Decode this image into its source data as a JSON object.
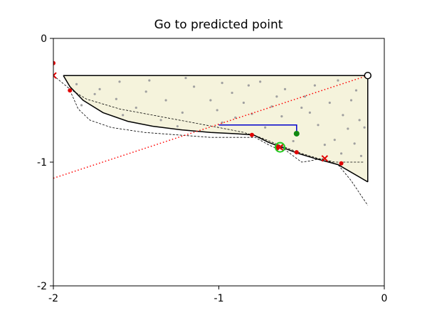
{
  "chart_data": {
    "type": "scatter",
    "title": "Go to predicted point",
    "xlabel": "",
    "ylabel": "",
    "xlim": [
      -2,
      0
    ],
    "ylim": [
      -2,
      0
    ],
    "grid": false,
    "x_ticks": [
      {
        "value": -2,
        "label": "-2"
      },
      {
        "value": -1,
        "label": "-1"
      },
      {
        "value": 0,
        "label": "0"
      }
    ],
    "y_ticks": [
      {
        "value": 0,
        "label": "0"
      },
      {
        "value": -1,
        "label": "-1"
      },
      {
        "value": -2,
        "label": "-2"
      }
    ],
    "colors": {
      "region_fill": "#f5f3dc",
      "scatter": "#a0a0a0",
      "boundary": "#000000",
      "markers": "#e00000",
      "step": "#0000cc",
      "predicted": "#118811",
      "target": "#22cc22",
      "dotted": "#ff0000"
    },
    "region": [
      [
        -1.94,
        -0.3
      ],
      [
        -0.1,
        -0.3
      ],
      [
        -0.1,
        -1.16
      ],
      [
        -0.28,
        -1.02
      ],
      [
        -0.42,
        -0.97
      ],
      [
        -0.52,
        -0.93
      ],
      [
        -0.62,
        -0.88
      ],
      [
        -0.7,
        -0.84
      ],
      [
        -0.79,
        -0.78
      ],
      [
        -0.9,
        -0.77
      ],
      [
        -1.05,
        -0.76
      ],
      [
        -1.22,
        -0.74
      ],
      [
        -1.4,
        -0.71
      ],
      [
        -1.55,
        -0.67
      ],
      [
        -1.7,
        -0.6
      ],
      [
        -1.82,
        -0.5
      ],
      [
        -1.9,
        -0.39
      ]
    ],
    "boundary_curve": [
      [
        -1.94,
        -0.3
      ],
      [
        -1.9,
        -0.39
      ],
      [
        -1.82,
        -0.5
      ],
      [
        -1.7,
        -0.6
      ],
      [
        -1.55,
        -0.67
      ],
      [
        -1.4,
        -0.71
      ],
      [
        -1.22,
        -0.74
      ],
      [
        -1.05,
        -0.76
      ],
      [
        -0.9,
        -0.77
      ],
      [
        -0.79,
        -0.78
      ],
      [
        -0.7,
        -0.84
      ],
      [
        -0.62,
        -0.88
      ],
      [
        -0.52,
        -0.93
      ],
      [
        -0.42,
        -0.97
      ],
      [
        -0.28,
        -1.02
      ],
      [
        -0.1,
        -1.16
      ]
    ],
    "dashed_curves": [
      [
        [
          -2.0,
          -0.3
        ],
        [
          -1.9,
          -0.41
        ],
        [
          -1.8,
          -0.49
        ],
        [
          -1.6,
          -0.57
        ],
        [
          -1.4,
          -0.62
        ],
        [
          -1.2,
          -0.67
        ],
        [
          -1.0,
          -0.72
        ],
        [
          -0.85,
          -0.76
        ],
        [
          -0.75,
          -0.8
        ],
        [
          -0.62,
          -0.87
        ],
        [
          -0.5,
          -0.93
        ],
        [
          -0.4,
          -0.97
        ],
        [
          -0.3,
          -1.0
        ],
        [
          -0.22,
          -1.0
        ],
        [
          -0.12,
          -1.0
        ]
      ],
      [
        [
          -1.9,
          -0.42
        ],
        [
          -1.85,
          -0.57
        ],
        [
          -1.78,
          -0.66
        ],
        [
          -1.65,
          -0.72
        ],
        [
          -1.45,
          -0.76
        ],
        [
          -1.25,
          -0.78
        ],
        [
          -1.05,
          -0.8
        ],
        [
          -0.9,
          -0.8
        ],
        [
          -0.78,
          -0.8
        ],
        [
          -0.7,
          -0.86
        ],
        [
          -0.65,
          -0.89
        ],
        [
          -0.6,
          -0.9
        ],
        [
          -0.55,
          -0.95
        ],
        [
          -0.5,
          -1.0
        ],
        [
          -0.45,
          -0.99
        ],
        [
          -0.38,
          -0.97
        ],
        [
          -0.28,
          -1.02
        ],
        [
          -0.2,
          -1.15
        ],
        [
          -0.1,
          -1.35
        ]
      ]
    ],
    "dotted_line": [
      [
        -2.0,
        -1.13
      ],
      [
        -0.1,
        -0.3
      ]
    ],
    "step_line": [
      [
        -1.0,
        -0.7
      ],
      [
        -0.53,
        -0.7
      ],
      [
        -0.53,
        -0.77
      ]
    ],
    "scatter_points": [
      [
        -1.6,
        -0.35
      ],
      [
        -1.42,
        -0.34
      ],
      [
        -1.2,
        -0.32
      ],
      [
        -0.98,
        -0.36
      ],
      [
        -1.15,
        -0.39
      ],
      [
        -1.44,
        -0.43
      ],
      [
        -1.75,
        -0.45
      ],
      [
        -1.86,
        -0.37
      ],
      [
        -1.62,
        -0.49
      ],
      [
        -1.32,
        -0.5
      ],
      [
        -1.05,
        -0.5
      ],
      [
        -0.92,
        -0.44
      ],
      [
        -0.82,
        -0.38
      ],
      [
        -0.75,
        -0.35
      ],
      [
        -0.6,
        -0.41
      ],
      [
        -0.42,
        -0.38
      ],
      [
        -0.28,
        -0.34
      ],
      [
        -0.17,
        -0.42
      ],
      [
        -0.2,
        -0.5
      ],
      [
        -0.33,
        -0.52
      ],
      [
        -0.5,
        -0.56
      ],
      [
        -0.68,
        -0.55
      ],
      [
        -0.8,
        -0.61
      ],
      [
        -0.9,
        -0.64
      ],
      [
        -0.62,
        -0.63
      ],
      [
        -0.45,
        -0.6
      ],
      [
        -0.4,
        -0.7
      ],
      [
        -0.25,
        -0.62
      ],
      [
        -0.15,
        -0.66
      ],
      [
        -0.12,
        -0.72
      ],
      [
        -0.3,
        -0.82
      ],
      [
        -0.18,
        -0.85
      ],
      [
        -0.26,
        -0.93
      ],
      [
        -0.36,
        -0.86
      ],
      [
        -0.55,
        -0.83
      ],
      [
        -1.72,
        -0.41
      ],
      [
        -1.5,
        -0.56
      ],
      [
        -1.22,
        -0.6
      ],
      [
        -1.01,
        -0.58
      ],
      [
        -1.35,
        -0.66
      ],
      [
        -0.14,
        -0.95
      ],
      [
        -0.22,
        -0.73
      ],
      [
        -0.85,
        -0.52
      ],
      [
        -0.65,
        -0.47
      ],
      [
        -0.48,
        -0.47
      ],
      [
        -1.83,
        -0.54
      ],
      [
        -1.25,
        -0.71
      ],
      [
        -1.58,
        -0.62
      ],
      [
        -0.72,
        -0.72
      ],
      [
        -0.98,
        -0.68
      ]
    ],
    "marker_points": [
      [
        -2.0,
        -0.2
      ],
      [
        -1.9,
        -0.42
      ],
      [
        -0.8,
        -0.78
      ],
      [
        -0.65,
        -0.88
      ],
      [
        -0.53,
        -0.92
      ],
      [
        -0.26,
        -1.01
      ]
    ],
    "x_markers": [
      [
        -2.0,
        -0.3
      ],
      [
        -0.63,
        -0.88
      ],
      [
        -0.36,
        -0.97
      ]
    ],
    "predicted_point": [
      -0.53,
      -0.77
    ],
    "target_ring": [
      -0.63,
      -0.88
    ],
    "start_point": [
      -0.1,
      -0.3
    ]
  }
}
